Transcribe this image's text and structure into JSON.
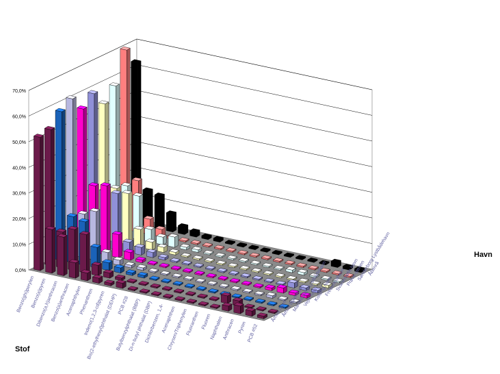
{
  "chart_data": {
    "type": "bar",
    "title": "",
    "xlabel": "Stof",
    "zlabel": "Havn",
    "ylim": [
      0,
      70
    ],
    "yticks": [
      "0,0%",
      "10,0%",
      "20,0%",
      "30,0%",
      "40,0%",
      "50,0%",
      "60,0%",
      "70,0%"
    ],
    "ytick_values": [
      0,
      10,
      20,
      30,
      40,
      50,
      60,
      70
    ],
    "grid": true,
    "categories": [
      "Benzo(ghi)perylen",
      "Benzo(a)pyren",
      "Dibenzo(a,h)anthracen",
      "Benzo(a)anthracen",
      "Acenaphthylen",
      "Phenanthren",
      "Indeno(1,2,3-cd)pyren",
      "Bis(2-ethylhexyl)phthalat (DEHP)",
      "PCB #28",
      "Butylbenzylphthalat (BBP)",
      "Di-n-butyl phthalat (DBP)",
      "Dichlorbenzen, 1,4-",
      "Acenaphthen",
      "Chrysen/Triphenylen",
      "Fluoranthen",
      "Fluoren",
      "Naphthalen",
      "Anthracen",
      "Pyren",
      "PCB #52"
    ],
    "series": [
      {
        "name": "Århus havn",
        "color": "#6b1a4a",
        "values": [
          52,
          17,
          15,
          6,
          3,
          2,
          1,
          2,
          0.5,
          0.5,
          0.5,
          0.5,
          0.5,
          0.5,
          0.5,
          0.5,
          2,
          3,
          2,
          1
        ]
      },
      {
        "name": "Århus fiskerihavn",
        "color": "#6b1a4a",
        "values": [
          53,
          14,
          16,
          15,
          4,
          2,
          1,
          0.5,
          0.5,
          0.5,
          0.5,
          0.5,
          0.5,
          0.5,
          0.5,
          3,
          2,
          0.5,
          0.5,
          0.5
        ]
      },
      {
        "name": "Marselisborg Lystbådehavn",
        "color": "#1a62b8",
        "values": [
          58,
          18,
          17,
          8,
          3,
          2,
          1,
          1,
          0.5,
          0.5,
          0.5,
          0.5,
          0.5,
          0.5,
          0.5,
          0.5,
          0.5,
          0.5,
          0.5,
          0.5
        ]
      },
      {
        "name": "Vejle havn",
        "color": "#b8b8e0",
        "values": [
          61,
          17,
          19,
          4,
          2,
          1,
          1,
          0.5,
          0.5,
          0.5,
          0.5,
          0.5,
          0.5,
          0.5,
          0.5,
          0.5,
          0.5,
          1,
          0.5,
          0.5
        ]
      },
      {
        "name": "Kolding havn",
        "color": "#ff00cc",
        "values": [
          55,
          26,
          27,
          9,
          3,
          1,
          0.5,
          0.5,
          0.5,
          0.5,
          0.5,
          0.5,
          0.5,
          0.5,
          0.5,
          0.5,
          1,
          2,
          1,
          1
        ]
      },
      {
        "name": "Fredericiahavn",
        "color": "#9090d8",
        "values": [
          59,
          22,
          22,
          4,
          3,
          2,
          1,
          0.5,
          0.5,
          0.5,
          0.5,
          0.5,
          0.5,
          0.5,
          0.5,
          0.5,
          0.5,
          2,
          1,
          1
        ]
      },
      {
        "name": "Svanemølle havn",
        "color": "#ffffc0",
        "values": [
          53,
          21,
          20,
          7,
          3,
          2,
          1,
          0.5,
          0.5,
          0.5,
          0.5,
          0.5,
          0.5,
          0.5,
          0.5,
          0.5,
          0.5,
          0.5,
          0.5,
          1
        ]
      },
      {
        "name": "Prøve-stenen",
        "color": "#e0ffff",
        "values": [
          58,
          20,
          17,
          5,
          3,
          4,
          1,
          1,
          0.5,
          0.5,
          0.5,
          0.5,
          0.5,
          0.5,
          0.5,
          1,
          1,
          0.5,
          0.5,
          0.5
        ]
      },
      {
        "name": "Sønderborg Lystbådehavn",
        "color": "#ff7f7f",
        "values": [
          70,
          20,
          6,
          3,
          1,
          0.5,
          0.5,
          0.5,
          0.5,
          0.5,
          0.5,
          0.5,
          0.5,
          0.5,
          0.5,
          0.5,
          0.5,
          0.5,
          0.5,
          0.5
        ]
      },
      {
        "name": "Åbenrå",
        "color": "#000000",
        "values": [
          63,
          14,
          13,
          7,
          3,
          2,
          1,
          1,
          0.5,
          0.5,
          0.5,
          0.5,
          0.5,
          0.5,
          0.5,
          0.5,
          0.5,
          2,
          1,
          1
        ]
      }
    ]
  }
}
